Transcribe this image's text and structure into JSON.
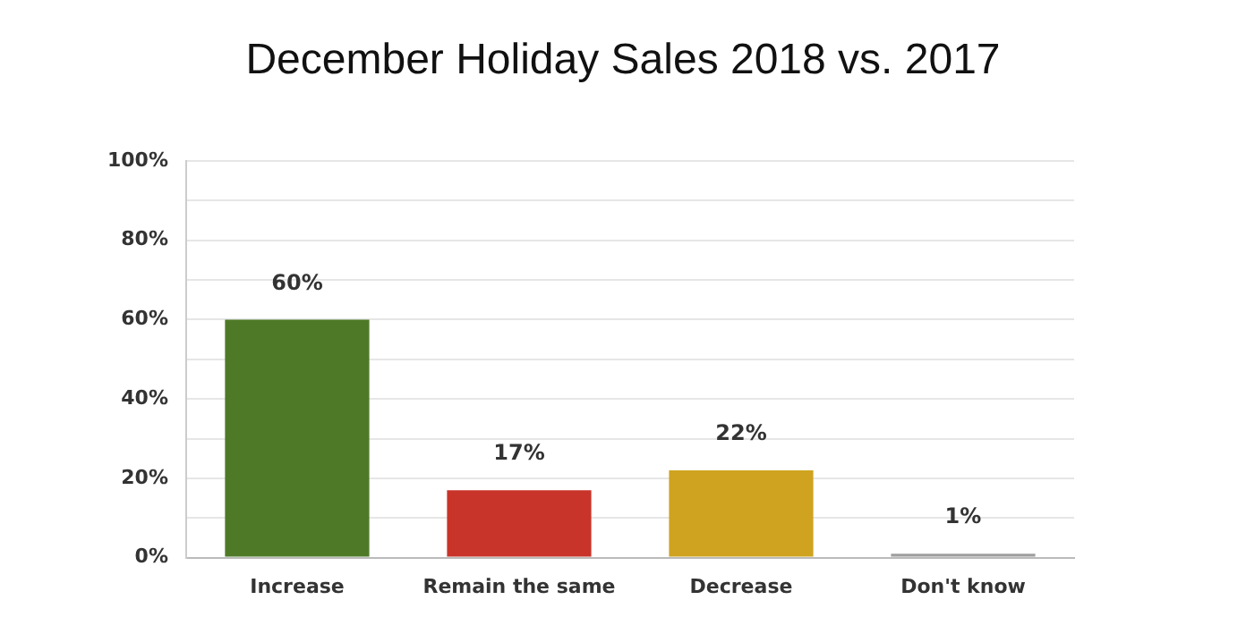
{
  "chart_data": {
    "type": "bar",
    "title": "December Holiday Sales 2018 vs. 2017",
    "categories": [
      "Increase",
      "Remain the same",
      "Decrease",
      "Don't know"
    ],
    "values": [
      60,
      17,
      22,
      1
    ],
    "colors": [
      "#4e7a27",
      "#c8342a",
      "#cfa31f",
      "#9e9e9e"
    ],
    "value_labels": [
      "60%",
      "17%",
      "22%",
      "1%"
    ],
    "ylim": [
      0,
      100
    ],
    "yticks": [
      {
        "value": 0,
        "label": "0%"
      },
      {
        "value": 10,
        "label": null
      },
      {
        "value": 20,
        "label": "20%"
      },
      {
        "value": 30,
        "label": null
      },
      {
        "value": 40,
        "label": "40%"
      },
      {
        "value": 50,
        "label": null
      },
      {
        "value": 60,
        "label": "60%"
      },
      {
        "value": 70,
        "label": null
      },
      {
        "value": 80,
        "label": "80%"
      },
      {
        "value": 90,
        "label": null
      },
      {
        "value": 100,
        "label": "100%"
      }
    ],
    "grid": "y",
    "legend": false
  }
}
